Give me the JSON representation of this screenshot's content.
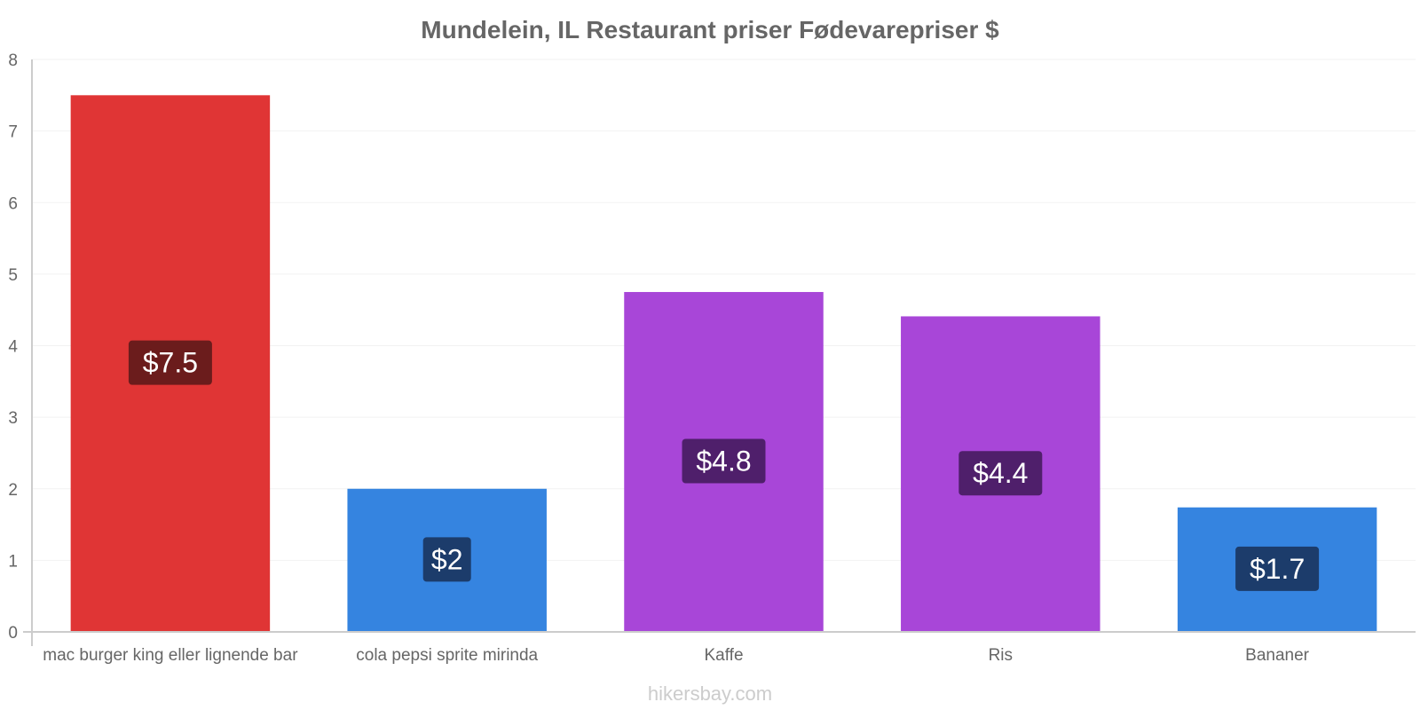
{
  "chart_data": {
    "type": "bar",
    "title": "Mundelein, IL Restaurant priser Fødevarepriser $",
    "xlabel": "",
    "ylabel": "",
    "ylim": [
      0,
      8
    ],
    "yticks": [
      "0",
      "1",
      "2",
      "3",
      "4",
      "5",
      "6",
      "7",
      "8"
    ],
    "grid": true,
    "categories": [
      "mac burger king eller lignende bar",
      "cola pepsi sprite mirinda",
      "Kaffe",
      "Ris",
      "Bananer"
    ],
    "values": [
      7.5,
      2.0,
      4.75,
      4.41,
      1.74
    ],
    "value_labels": [
      "$7.5",
      "$2",
      "$4.8",
      "$4.4",
      "$1.7"
    ],
    "bar_colors": [
      "#e03535",
      "#3584e0",
      "#a846d8",
      "#a846d8",
      "#3584e0"
    ],
    "label_bg_colors": [
      "#6b1c1c",
      "#1c3c6b",
      "#4f1f6b",
      "#4f1f6b",
      "#1c3c6b"
    ]
  },
  "watermark": "hikersbay.com"
}
